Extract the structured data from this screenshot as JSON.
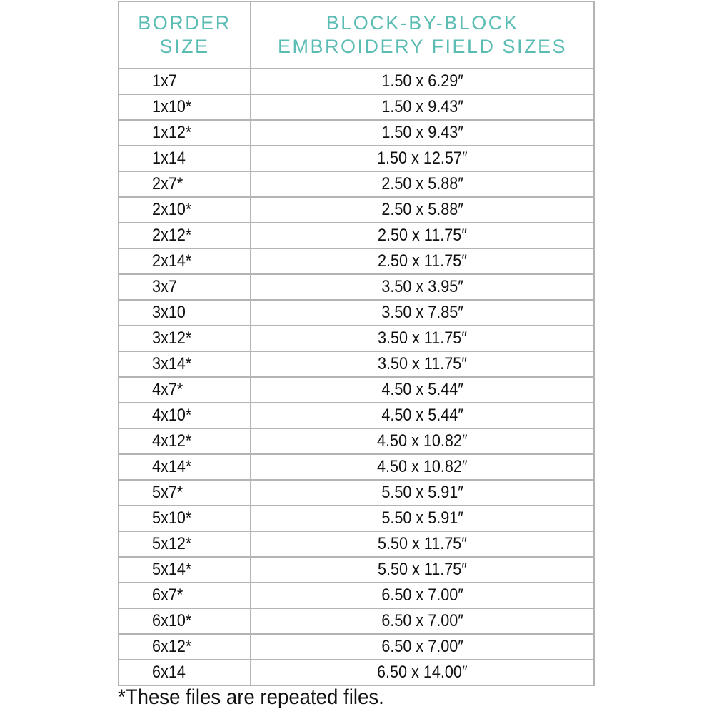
{
  "header": {
    "col1": [
      "BORDER",
      "SIZE"
    ],
    "col2": [
      "BLOCK-BY-BLOCK",
      "EMBROIDERY FIELD SIZES"
    ]
  },
  "rows": [
    {
      "border": "1x7",
      "field": "1.50 x 6.29″"
    },
    {
      "border": "1x10*",
      "field": "1.50 x 9.43″"
    },
    {
      "border": "1x12*",
      "field": "1.50 x 9.43″"
    },
    {
      "border": "1x14",
      "field": "1.50 x 12.57″"
    },
    {
      "border": "2x7*",
      "field": "2.50 x 5.88″"
    },
    {
      "border": "2x10*",
      "field": "2.50 x 5.88″"
    },
    {
      "border": "2x12*",
      "field": "2.50 x 11.75″"
    },
    {
      "border": "2x14*",
      "field": "2.50 x 11.75″"
    },
    {
      "border": "3x7",
      "field": "3.50 x 3.95″"
    },
    {
      "border": "3x10",
      "field": "3.50 x 7.85″"
    },
    {
      "border": "3x12*",
      "field": "3.50 x 11.75″"
    },
    {
      "border": "3x14*",
      "field": "3.50 x 11.75″"
    },
    {
      "border": "4x7*",
      "field": "4.50 x 5.44″"
    },
    {
      "border": "4x10*",
      "field": "4.50 x 5.44″"
    },
    {
      "border": "4x12*",
      "field": "4.50 x 10.82″"
    },
    {
      "border": "4x14*",
      "field": "4.50 x 10.82″"
    },
    {
      "border": "5x7*",
      "field": "5.50 x 5.91″"
    },
    {
      "border": "5x10*",
      "field": "5.50 x 5.91″"
    },
    {
      "border": "5x12*",
      "field": "5.50 x 11.75″"
    },
    {
      "border": "5x14*",
      "field": "5.50 x 11.75″"
    },
    {
      "border": "6x7*",
      "field": "6.50 x 7.00″"
    },
    {
      "border": "6x10*",
      "field": "6.50 x 7.00″"
    },
    {
      "border": "6x12*",
      "field": "6.50 x 7.00″"
    },
    {
      "border": "6x14",
      "field": "6.50 x 14.00″"
    }
  ],
  "footnote": "*These files are repeated files.",
  "colors": {
    "header_text": "#5bbcb4",
    "border": "#b4b4b4",
    "text": "#111111"
  }
}
